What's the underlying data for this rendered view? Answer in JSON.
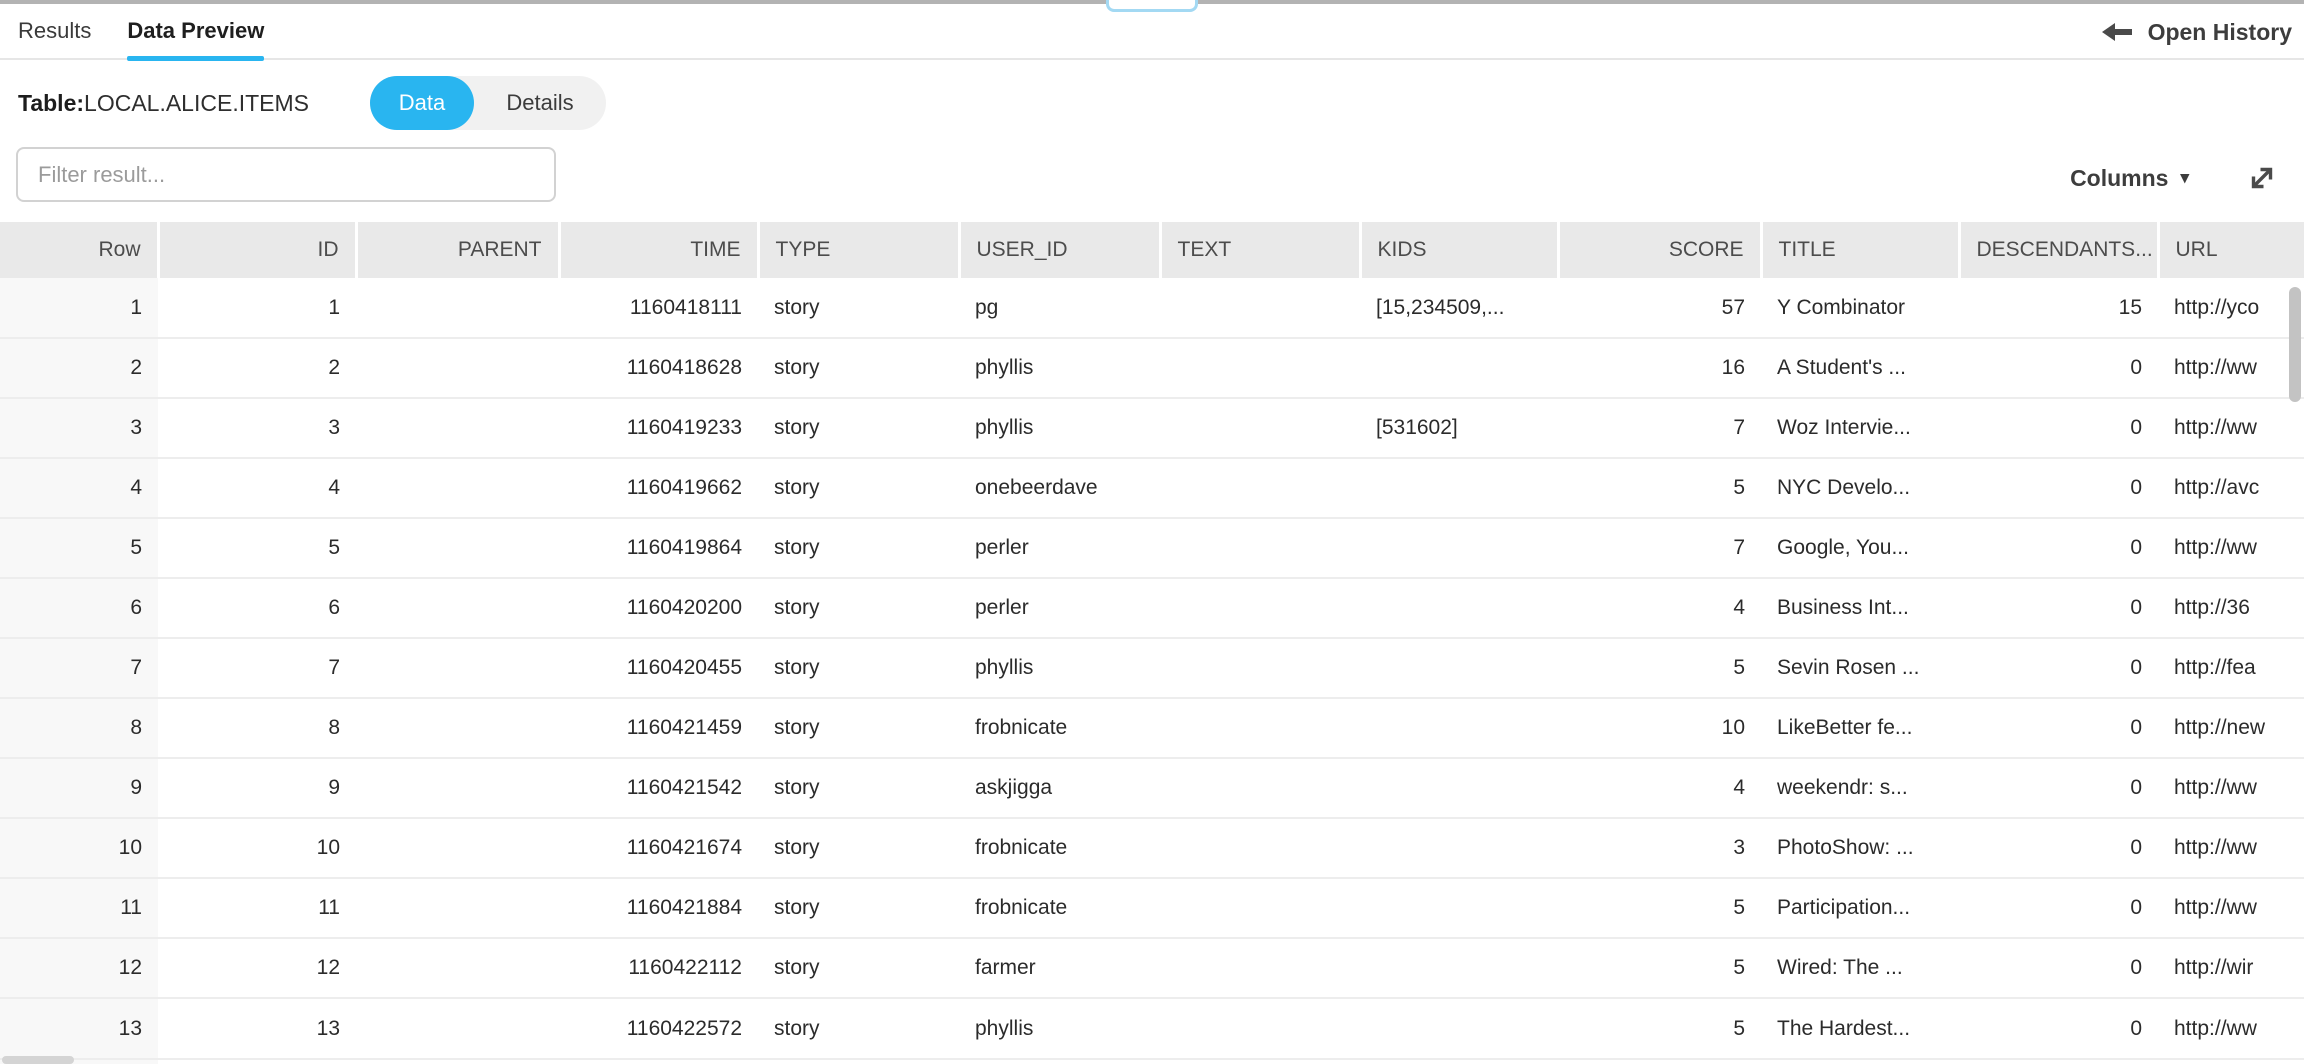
{
  "accent_color": "#29b5f0",
  "tabs": {
    "results": "Results",
    "data_preview": "Data Preview"
  },
  "open_history_label": "Open History",
  "table_info": {
    "label": "Table:",
    "name": "LOCAL.ALICE.ITEMS"
  },
  "view_toggle": {
    "data_label": "Data",
    "details_label": "Details"
  },
  "filter": {
    "placeholder": "Filter result..."
  },
  "columns_menu": {
    "label": "Columns",
    "caret": "▾"
  },
  "grid": {
    "headers": [
      {
        "key": "row",
        "label": "Row",
        "align": "right"
      },
      {
        "key": "id",
        "label": "ID",
        "align": "right"
      },
      {
        "key": "parent",
        "label": "PARENT",
        "align": "right"
      },
      {
        "key": "time",
        "label": "TIME",
        "align": "right"
      },
      {
        "key": "type",
        "label": "TYPE",
        "align": "left"
      },
      {
        "key": "user_id",
        "label": "USER_ID",
        "align": "left"
      },
      {
        "key": "text",
        "label": "TEXT",
        "align": "left"
      },
      {
        "key": "kids",
        "label": "KIDS",
        "align": "left"
      },
      {
        "key": "score",
        "label": "SCORE",
        "align": "right"
      },
      {
        "key": "title",
        "label": "TITLE",
        "align": "left"
      },
      {
        "key": "descendants",
        "label": "DESCENDANTS...",
        "align": "left",
        "value_align": "right"
      },
      {
        "key": "url",
        "label": "URL",
        "align": "left"
      }
    ],
    "rows": [
      {
        "row": "1",
        "id": "1",
        "parent": "",
        "time": "1160418111",
        "type": "story",
        "user_id": "pg",
        "text": "",
        "kids": "[15,234509,...",
        "score": "57",
        "title": "Y Combinator",
        "descendants": "15",
        "url": "http://yco"
      },
      {
        "row": "2",
        "id": "2",
        "parent": "",
        "time": "1160418628",
        "type": "story",
        "user_id": "phyllis",
        "text": "",
        "kids": "",
        "score": "16",
        "title": "A Student's ...",
        "descendants": "0",
        "url": "http://ww"
      },
      {
        "row": "3",
        "id": "3",
        "parent": "",
        "time": "1160419233",
        "type": "story",
        "user_id": "phyllis",
        "text": "",
        "kids": "[531602]",
        "score": "7",
        "title": "Woz Intervie...",
        "descendants": "0",
        "url": "http://ww"
      },
      {
        "row": "4",
        "id": "4",
        "parent": "",
        "time": "1160419662",
        "type": "story",
        "user_id": "onebeerdave",
        "text": "",
        "kids": "",
        "score": "5",
        "title": "NYC Develo...",
        "descendants": "0",
        "url": "http://avc"
      },
      {
        "row": "5",
        "id": "5",
        "parent": "",
        "time": "1160419864",
        "type": "story",
        "user_id": "perler",
        "text": "",
        "kids": "",
        "score": "7",
        "title": "Google, You...",
        "descendants": "0",
        "url": "http://ww"
      },
      {
        "row": "6",
        "id": "6",
        "parent": "",
        "time": "1160420200",
        "type": "story",
        "user_id": "perler",
        "text": "",
        "kids": "",
        "score": "4",
        "title": "Business Int...",
        "descendants": "0",
        "url": "http://36"
      },
      {
        "row": "7",
        "id": "7",
        "parent": "",
        "time": "1160420455",
        "type": "story",
        "user_id": "phyllis",
        "text": "",
        "kids": "",
        "score": "5",
        "title": "Sevin Rosen ...",
        "descendants": "0",
        "url": "http://fea"
      },
      {
        "row": "8",
        "id": "8",
        "parent": "",
        "time": "1160421459",
        "type": "story",
        "user_id": "frobnicate",
        "text": "",
        "kids": "",
        "score": "10",
        "title": "LikeBetter fe...",
        "descendants": "0",
        "url": "http://new"
      },
      {
        "row": "9",
        "id": "9",
        "parent": "",
        "time": "1160421542",
        "type": "story",
        "user_id": "askjigga",
        "text": "",
        "kids": "",
        "score": "4",
        "title": "weekendr: s...",
        "descendants": "0",
        "url": "http://ww"
      },
      {
        "row": "10",
        "id": "10",
        "parent": "",
        "time": "1160421674",
        "type": "story",
        "user_id": "frobnicate",
        "text": "",
        "kids": "",
        "score": "3",
        "title": "PhotoShow: ...",
        "descendants": "0",
        "url": "http://ww"
      },
      {
        "row": "11",
        "id": "11",
        "parent": "",
        "time": "1160421884",
        "type": "story",
        "user_id": "frobnicate",
        "text": "",
        "kids": "",
        "score": "5",
        "title": "Participation...",
        "descendants": "0",
        "url": "http://ww"
      },
      {
        "row": "12",
        "id": "12",
        "parent": "",
        "time": "1160422112",
        "type": "story",
        "user_id": "farmer",
        "text": "",
        "kids": "",
        "score": "5",
        "title": "Wired: The ...",
        "descendants": "0",
        "url": "http://wir"
      },
      {
        "row": "13",
        "id": "13",
        "parent": "",
        "time": "1160422572",
        "type": "story",
        "user_id": "phyllis",
        "text": "",
        "kids": "",
        "score": "5",
        "title": "The Hardest...",
        "descendants": "0",
        "url": "http://ww"
      }
    ]
  }
}
